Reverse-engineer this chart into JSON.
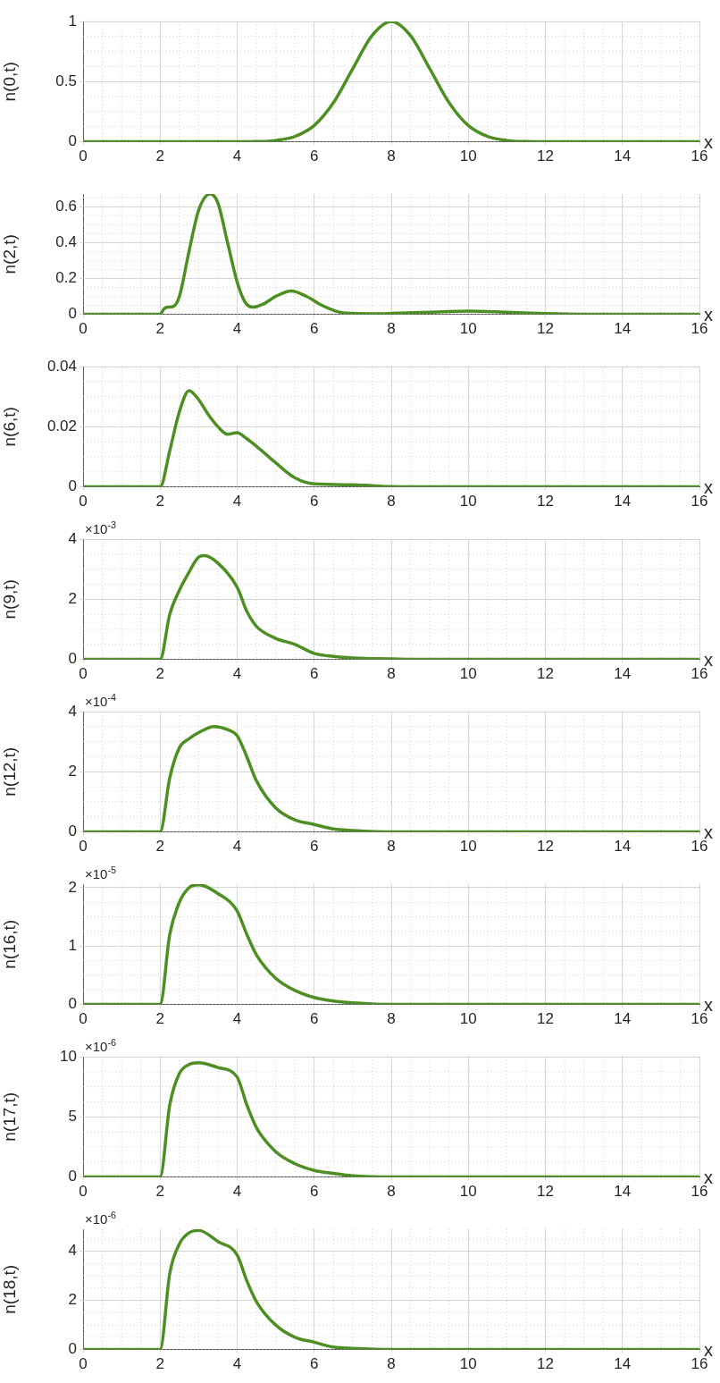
{
  "chart_data": [
    {
      "type": "line",
      "ylabel": "n(0,t)",
      "xlabel": "x",
      "xlim": [
        0,
        16
      ],
      "xticks": [
        0,
        2,
        4,
        6,
        8,
        10,
        12,
        14,
        16
      ],
      "ylim": [
        0,
        1
      ],
      "yticks": [
        0,
        0.5,
        1
      ],
      "grid": true,
      "series": [
        {
          "color": "#4e8f23",
          "x": [
            0,
            4,
            4.5,
            5,
            5.5,
            6,
            6.5,
            7,
            7.5,
            8,
            8.5,
            9,
            9.5,
            10,
            10.5,
            11,
            11.5,
            12,
            16
          ],
          "values": [
            0,
            0,
            0.002,
            0.011,
            0.044,
            0.135,
            0.325,
            0.607,
            0.882,
            1,
            0.882,
            0.607,
            0.325,
            0.135,
            0.044,
            0.011,
            0.002,
            0,
            0
          ]
        }
      ]
    },
    {
      "type": "line",
      "ylabel": "n(2,t)",
      "xlabel": "x",
      "xlim": [
        0,
        16
      ],
      "xticks": [
        0,
        2,
        4,
        6,
        8,
        10,
        12,
        14,
        16
      ],
      "ylim": [
        0,
        0.67
      ],
      "yticks": [
        0,
        0.2,
        0.4,
        0.6
      ],
      "grid": true,
      "series": [
        {
          "color": "#4e8f23",
          "x": [
            0,
            2,
            2.1,
            2.2,
            2.35,
            2.5,
            2.75,
            3,
            3.3,
            3.5,
            3.75,
            4,
            4.2,
            4.4,
            4.7,
            5,
            5.4,
            5.8,
            6.2,
            6.6,
            7,
            7.5,
            8,
            9,
            10,
            11,
            12,
            13,
            16
          ],
          "values": [
            0,
            0,
            0.03,
            0.04,
            0.045,
            0.1,
            0.35,
            0.58,
            0.67,
            0.62,
            0.4,
            0.18,
            0.07,
            0.04,
            0.06,
            0.1,
            0.13,
            0.1,
            0.05,
            0.015,
            0.005,
            0.003,
            0.005,
            0.012,
            0.018,
            0.012,
            0.004,
            0,
            0
          ]
        }
      ]
    },
    {
      "type": "line",
      "ylabel": "n(6,t)",
      "xlabel": "x",
      "xlim": [
        0,
        16
      ],
      "xticks": [
        0,
        2,
        4,
        6,
        8,
        10,
        12,
        14,
        16
      ],
      "ylim": [
        0,
        0.04
      ],
      "yticks": [
        0,
        0.02,
        0.04
      ],
      "grid": true,
      "series": [
        {
          "color": "#4e8f23",
          "x": [
            0,
            2,
            2.25,
            2.5,
            2.75,
            3,
            3.25,
            3.5,
            3.75,
            4,
            4.25,
            4.5,
            5,
            5.5,
            6,
            7,
            7.5,
            8,
            9,
            16
          ],
          "values": [
            0,
            0,
            0.012,
            0.025,
            0.032,
            0.029,
            0.024,
            0.02,
            0.0175,
            0.018,
            0.016,
            0.0135,
            0.008,
            0.003,
            0.001,
            0.0007,
            0.0004,
            0.0001,
            0,
            0
          ]
        }
      ]
    },
    {
      "type": "line",
      "ylabel": "n(9,t)",
      "xlabel": "x",
      "annotations": [
        "×10$^{-3}$"
      ],
      "xlim": [
        0,
        16
      ],
      "xticks": [
        0,
        2,
        4,
        6,
        8,
        10,
        12,
        14,
        16
      ],
      "ylim": [
        0,
        4
      ],
      "yticks": [
        0,
        2,
        4
      ],
      "grid": true,
      "series": [
        {
          "color": "#4e8f23",
          "x": [
            0,
            2,
            2.25,
            2.5,
            2.75,
            3,
            3.15,
            3.5,
            4,
            4.25,
            4.5,
            5,
            5.5,
            6,
            6.5,
            7,
            8,
            9,
            16
          ],
          "values": [
            0,
            0,
            1.5,
            2.3,
            2.9,
            3.4,
            3.45,
            3.2,
            2.4,
            1.6,
            1.1,
            0.7,
            0.5,
            0.2,
            0.1,
            0.05,
            0.02,
            0,
            0
          ]
        }
      ]
    },
    {
      "type": "line",
      "ylabel": "n(12,t)",
      "xlabel": "x",
      "annotations": [
        "×10$^{-4}$"
      ],
      "xlim": [
        0,
        16
      ],
      "xticks": [
        0,
        2,
        4,
        6,
        8,
        10,
        12,
        14,
        16
      ],
      "ylim": [
        0,
        4
      ],
      "yticks": [
        0,
        2,
        4
      ],
      "grid": true,
      "series": [
        {
          "color": "#4e8f23",
          "x": [
            0,
            2,
            2.25,
            2.5,
            2.75,
            3,
            3.4,
            3.75,
            4,
            4.25,
            4.5,
            5,
            5.5,
            6,
            6.5,
            7,
            8,
            9,
            16
          ],
          "values": [
            0,
            0,
            1.8,
            2.8,
            3.1,
            3.3,
            3.5,
            3.4,
            3.2,
            2.5,
            1.7,
            0.8,
            0.4,
            0.25,
            0.1,
            0.05,
            0,
            0,
            0
          ]
        }
      ]
    },
    {
      "type": "line",
      "ylabel": "n(16,t)",
      "xlabel": "x",
      "annotations": [
        "×10$^{-5}$"
      ],
      "xlim": [
        0,
        16
      ],
      "xticks": [
        0,
        2,
        4,
        6,
        8,
        10,
        12,
        14,
        16
      ],
      "ylim": [
        0,
        2.06
      ],
      "yticks": [
        0,
        1,
        2
      ],
      "grid": true,
      "series": [
        {
          "color": "#4e8f23",
          "x": [
            0,
            2,
            2.25,
            2.5,
            2.75,
            3,
            3.5,
            4,
            4.25,
            4.5,
            5,
            5.5,
            6,
            6.5,
            7,
            8,
            9,
            16
          ],
          "values": [
            0,
            0,
            1.2,
            1.75,
            2,
            2.05,
            1.9,
            1.6,
            1.2,
            0.85,
            0.45,
            0.24,
            0.12,
            0.06,
            0.03,
            0,
            0,
            0
          ]
        }
      ]
    },
    {
      "type": "line",
      "ylabel": "n(17,t)",
      "xlabel": "x",
      "annotations": [
        "×10$^{-6}$"
      ],
      "xlim": [
        0,
        16
      ],
      "xticks": [
        0,
        2,
        4,
        6,
        8,
        10,
        12,
        14,
        16
      ],
      "ylim": [
        0,
        10
      ],
      "yticks": [
        0,
        5,
        10
      ],
      "grid": true,
      "series": [
        {
          "color": "#4e8f23",
          "x": [
            0,
            2,
            2.25,
            2.5,
            2.75,
            3,
            3.5,
            4,
            4.25,
            4.5,
            5,
            5.5,
            6,
            6.5,
            7,
            8,
            9,
            16
          ],
          "values": [
            0,
            0,
            6,
            8.6,
            9.35,
            9.5,
            9.1,
            8.3,
            6,
            4.1,
            2.1,
            1.1,
            0.55,
            0.3,
            0.1,
            0,
            0,
            0
          ]
        }
      ]
    },
    {
      "type": "line",
      "ylabel": "n(18,t)",
      "xlabel": "x",
      "annotations": [
        "×10$^{-6}$"
      ],
      "xlim": [
        0,
        16
      ],
      "xticks": [
        0,
        2,
        4,
        6,
        8,
        10,
        12,
        14,
        16
      ],
      "ylim": [
        0,
        4.9
      ],
      "yticks": [
        0,
        2,
        4
      ],
      "grid": true,
      "series": [
        {
          "color": "#4e8f23",
          "x": [
            0,
            2,
            2.25,
            2.5,
            2.75,
            3,
            3.5,
            4,
            4.25,
            4.5,
            5,
            5.5,
            6,
            6.5,
            7,
            8,
            9,
            16
          ],
          "values": [
            0,
            0,
            3.1,
            4.3,
            4.75,
            4.85,
            4.4,
            3.85,
            2.8,
            1.95,
            1,
            0.5,
            0.3,
            0.1,
            0.05,
            0,
            0,
            0
          ]
        }
      ]
    }
  ]
}
